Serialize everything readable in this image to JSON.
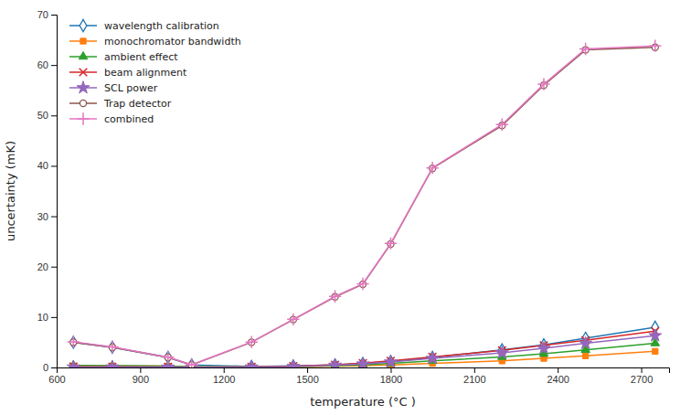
{
  "chart_data": {
    "type": "line",
    "xlabel": "temperature (°C )",
    "ylabel": "uncertainty (mK)",
    "x": [
      660,
      800,
      1000,
      1085,
      1300,
      1450,
      1600,
      1700,
      1800,
      1950,
      2200,
      2350,
      2500,
      2750
    ],
    "xlim": [
      600,
      2800
    ],
    "ylim": [
      0,
      70
    ],
    "xticks": [
      600,
      900,
      1200,
      1500,
      1800,
      2100,
      2400,
      2700
    ],
    "yticks": [
      0,
      10,
      20,
      30,
      40,
      50,
      60,
      70
    ],
    "grid": false,
    "legend": "upper-left",
    "series": [
      {
        "name": "wavelength calibration",
        "marker": "diamond",
        "values": [
          5.0,
          4.0,
          2.0,
          0.5,
          0.2,
          0.3,
          0.5,
          0.8,
          1.2,
          2.0,
          3.5,
          4.5,
          5.8,
          8.0
        ]
      },
      {
        "name": "monochromator bandwidth",
        "marker": "square",
        "values": [
          0.3,
          0.3,
          0.25,
          0.15,
          0.1,
          0.15,
          0.25,
          0.35,
          0.5,
          0.8,
          1.3,
          1.8,
          2.3,
          3.2
        ]
      },
      {
        "name": "ambient effect",
        "marker": "triangle",
        "values": [
          0.4,
          0.35,
          0.25,
          0.15,
          0.1,
          0.18,
          0.35,
          0.5,
          0.8,
          1.3,
          2.1,
          2.7,
          3.5,
          4.8
        ]
      },
      {
        "name": "beam alignment",
        "marker": "x",
        "values": [
          0.15,
          0.12,
          0.1,
          0.05,
          0.1,
          0.25,
          0.55,
          0.85,
          1.3,
          2.1,
          3.4,
          4.4,
          5.4,
          7.2
        ]
      },
      {
        "name": "SCL power",
        "marker": "star",
        "values": [
          0.1,
          0.1,
          0.08,
          0.05,
          0.1,
          0.2,
          0.45,
          0.7,
          1.1,
          1.8,
          2.9,
          3.8,
          4.8,
          6.3
        ]
      },
      {
        "name": "Trap detector",
        "marker": "circle",
        "values": [
          5.0,
          4.0,
          2.0,
          0.5,
          5.0,
          9.5,
          14.0,
          16.5,
          24.5,
          39.5,
          48.0,
          56.0,
          63.0,
          63.5
        ]
      },
      {
        "name": "combined",
        "marker": "plus",
        "values": [
          5.1,
          4.1,
          2.05,
          0.55,
          5.05,
          9.55,
          14.1,
          16.6,
          24.6,
          39.6,
          48.2,
          56.2,
          63.2,
          63.8
        ]
      }
    ]
  }
}
